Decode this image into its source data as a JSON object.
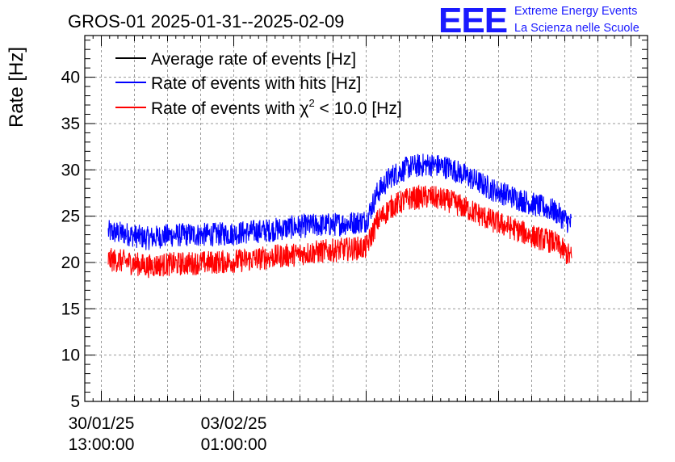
{
  "chart_data": {
    "type": "line",
    "title": "GROS-01 2025-01-31--2025-02-09",
    "ylabel": "Rate [Hz]",
    "xlabel": "",
    "ylim": [
      5,
      44.5
    ],
    "y_ticks": [
      "5",
      "10",
      "15",
      "20",
      "25",
      "30",
      "35",
      "40"
    ],
    "x_tick_labels": [
      {
        "date": "30/01/25",
        "time": "13:00:00"
      },
      {
        "date": "03/02/25",
        "time": "01:00:00"
      }
    ],
    "grid": true,
    "legend_position": "top-left",
    "x_hours": [
      17,
      30,
      45,
      60,
      75,
      90,
      105,
      120,
      135,
      150,
      165,
      180,
      195,
      204,
      212,
      222,
      235,
      250,
      265,
      280,
      295,
      310,
      325,
      340,
      353
    ],
    "series": [
      {
        "name": "Average rate of events [Hz]",
        "color": "#000000",
        "values": []
      },
      {
        "name": "Rate of events with hits [Hz]",
        "color": "#0000ff",
        "values": [
          23.3,
          23.1,
          22.6,
          22.9,
          23.0,
          23.0,
          23.1,
          23.3,
          23.5,
          23.8,
          24.0,
          24.1,
          24.3,
          24.5,
          27.5,
          29.3,
          30.3,
          30.6,
          30.2,
          29.1,
          27.9,
          27.1,
          26.3,
          25.6,
          24.1
        ]
      },
      {
        "name": "Rate of events with χ² < 10.0 [Hz]",
        "color": "#ff0000",
        "values": [
          20.3,
          20.1,
          19.6,
          19.8,
          19.9,
          20.0,
          20.1,
          20.3,
          20.6,
          20.8,
          21.1,
          21.3,
          21.5,
          21.6,
          24.4,
          26.0,
          26.9,
          27.1,
          26.6,
          25.6,
          24.5,
          23.7,
          22.8,
          22.2,
          20.5
        ]
      }
    ]
  },
  "legend": [
    {
      "label_main": "Average rate of events [Hz]",
      "label_sup": "",
      "label_tail": "",
      "color": "#000000"
    },
    {
      "label_main": "Rate of events with hits [Hz]",
      "label_sup": "",
      "label_tail": "",
      "color": "#0000ff"
    },
    {
      "label_main": "Rate of events with χ",
      "label_sup": "2",
      "label_tail": " < 10.0 [Hz]",
      "color": "#ff0000"
    }
  ],
  "logo": {
    "mark": "EEE",
    "line1": "Extreme Energy Events",
    "line2": "La Scienza nelle Scuole"
  }
}
